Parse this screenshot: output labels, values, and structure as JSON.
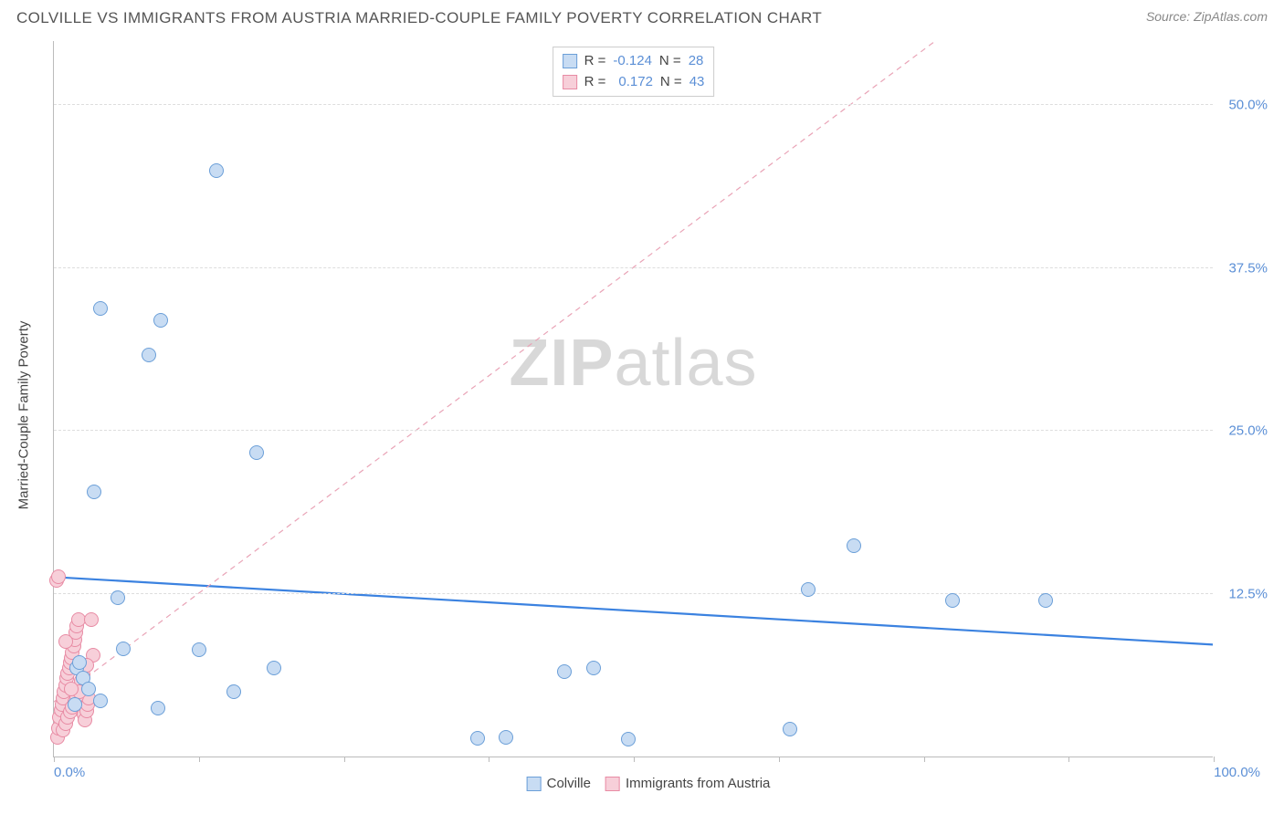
{
  "header": {
    "title": "COLVILLE VS IMMIGRANTS FROM AUSTRIA MARRIED-COUPLE FAMILY POVERTY CORRELATION CHART",
    "source": "Source: ZipAtlas.com"
  },
  "y_axis_label": "Married-Couple Family Poverty",
  "watermark": {
    "bold": "ZIP",
    "rest": "atlas"
  },
  "chart": {
    "type": "scatter",
    "background_color": "#ffffff",
    "grid_color": "#dddddd",
    "axis_color": "#bbbbbb",
    "xlim": [
      0,
      100
    ],
    "ylim": [
      0,
      55
    ],
    "xtick_positions": [
      0,
      12.5,
      25,
      37.5,
      50,
      62.5,
      75,
      87.5,
      100
    ],
    "xtick_labels": {
      "0": "0.0%",
      "100": "100.0%"
    },
    "ytick_positions": [
      12.5,
      25,
      37.5,
      50
    ],
    "ytick_labels": {
      "12.5": "12.5%",
      "25": "25.0%",
      "37.5": "37.5%",
      "50": "50.0%"
    },
    "tick_label_color": "#5b8fd6",
    "tick_label_fontsize": 15,
    "marker_radius": 8,
    "marker_border_width": 1.2,
    "series": [
      {
        "name": "Colville",
        "fill_color": "#c8dcf3",
        "border_color": "#6b9fd8",
        "trend": {
          "y_at_x0": 13.8,
          "y_at_x100": 8.6,
          "stroke": "#3b82e0",
          "stroke_width": 2.2,
          "dash": "none"
        },
        "R": "-0.124",
        "N": "28",
        "points": [
          [
            1.8,
            4.0
          ],
          [
            2.0,
            6.8
          ],
          [
            2.2,
            7.2
          ],
          [
            3.5,
            20.3
          ],
          [
            4.0,
            34.4
          ],
          [
            5.5,
            12.2
          ],
          [
            6.0,
            8.3
          ],
          [
            8.2,
            30.8
          ],
          [
            9.0,
            3.7
          ],
          [
            9.2,
            33.5
          ],
          [
            12.5,
            8.2
          ],
          [
            14.0,
            45.0
          ],
          [
            15.5,
            5.0
          ],
          [
            17.5,
            23.3
          ],
          [
            19.0,
            6.8
          ],
          [
            36.5,
            1.4
          ],
          [
            39.0,
            1.5
          ],
          [
            44.0,
            6.5
          ],
          [
            46.5,
            6.8
          ],
          [
            49.5,
            1.3
          ],
          [
            63.5,
            2.1
          ],
          [
            65.0,
            12.8
          ],
          [
            69.0,
            16.2
          ],
          [
            77.5,
            12.0
          ],
          [
            85.5,
            12.0
          ],
          [
            2.5,
            6.0
          ],
          [
            3.0,
            5.2
          ],
          [
            4.0,
            4.3
          ]
        ]
      },
      {
        "name": "Immigrants from Austria",
        "fill_color": "#f7cfd9",
        "border_color": "#e88ba4",
        "trend": {
          "y_at_x0": 4.2,
          "y_at_x100": 71.0,
          "stroke": "#e9a3b6",
          "stroke_width": 1.2,
          "dash": "6,5"
        },
        "R": "0.172",
        "N": "43",
        "points": [
          [
            0.3,
            1.5
          ],
          [
            0.4,
            2.2
          ],
          [
            0.5,
            3.0
          ],
          [
            0.6,
            3.6
          ],
          [
            0.7,
            4.0
          ],
          [
            0.8,
            4.5
          ],
          [
            0.9,
            5.0
          ],
          [
            1.0,
            5.5
          ],
          [
            1.1,
            6.0
          ],
          [
            1.2,
            6.4
          ],
          [
            1.3,
            6.8
          ],
          [
            1.4,
            7.2
          ],
          [
            1.5,
            7.6
          ],
          [
            1.6,
            8.0
          ],
          [
            1.7,
            8.5
          ],
          [
            1.8,
            9.0
          ],
          [
            1.9,
            9.5
          ],
          [
            2.0,
            10.0
          ],
          [
            2.1,
            10.5
          ],
          [
            2.2,
            4.8
          ],
          [
            2.3,
            5.3
          ],
          [
            2.4,
            5.8
          ],
          [
            2.5,
            6.3
          ],
          [
            2.6,
            3.2
          ],
          [
            2.7,
            2.8
          ],
          [
            2.8,
            3.5
          ],
          [
            2.9,
            4.0
          ],
          [
            3.0,
            4.5
          ],
          [
            3.2,
            10.5
          ],
          [
            3.4,
            7.8
          ],
          [
            0.2,
            13.5
          ],
          [
            0.4,
            13.8
          ],
          [
            0.8,
            2.0
          ],
          [
            1.0,
            2.5
          ],
          [
            1.2,
            3.0
          ],
          [
            1.4,
            3.4
          ],
          [
            1.6,
            3.8
          ],
          [
            1.8,
            4.2
          ],
          [
            2.0,
            4.6
          ],
          [
            2.2,
            5.0
          ],
          [
            1.0,
            8.8
          ],
          [
            1.5,
            5.2
          ],
          [
            2.8,
            7.0
          ]
        ]
      }
    ]
  },
  "legend_top": {
    "r_label": "R =",
    "n_label": "N ="
  },
  "legend_bottom": {
    "items": [
      "Colville",
      "Immigrants from Austria"
    ]
  }
}
